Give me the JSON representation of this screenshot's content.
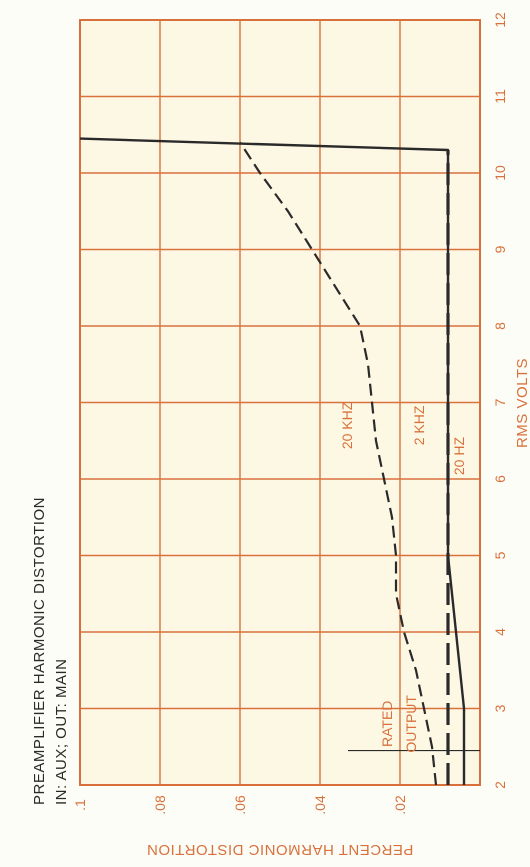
{
  "chart_data": {
    "type": "line",
    "title": "PREAMPLIFIER HARMONIC DISTORTION",
    "subtitle": "IN: AUX; OUT: MAIN",
    "xlabel": "RMS VOLTS",
    "ylabel": "PERCENT HARMONIC DISTORTION",
    "xlim": [
      2,
      12
    ],
    "ylim": [
      0,
      0.1
    ],
    "x_ticks": [
      "2",
      "3",
      "4",
      "5",
      "6",
      "7",
      "8",
      "9",
      "10",
      "11",
      "12"
    ],
    "y_ticks": [
      ".02",
      ".04",
      ".06",
      ".08",
      ".1"
    ],
    "grid": true,
    "series": [
      {
        "name": "20 KHZ",
        "style": "short-dash",
        "x": [
          2,
          2.5,
          3,
          3.5,
          4,
          4.5,
          5,
          5.5,
          6,
          6.5,
          7,
          7.5,
          8,
          8.5,
          9,
          9.5,
          10,
          10.4
        ],
        "y": [
          0.011,
          0.012,
          0.014,
          0.016,
          0.019,
          0.021,
          0.021,
          0.022,
          0.024,
          0.026,
          0.027,
          0.028,
          0.03,
          0.036,
          0.042,
          0.048,
          0.055,
          0.06
        ]
      },
      {
        "name": "2 KHZ",
        "style": "long-dash",
        "x": [
          2,
          2.5,
          3,
          4,
          5,
          6,
          7,
          8,
          9,
          10,
          10.3
        ],
        "y": [
          0.008,
          0.008,
          0.008,
          0.008,
          0.008,
          0.008,
          0.008,
          0.008,
          0.008,
          0.008,
          0.008
        ]
      },
      {
        "name": "20 HZ",
        "style": "solid",
        "x": [
          2,
          2.5,
          3,
          3.5,
          4,
          4.5,
          5,
          5.5,
          6,
          7,
          8,
          9,
          10,
          10.3,
          10.45
        ],
        "y": [
          0.004,
          0.004,
          0.004,
          0.005,
          0.006,
          0.007,
          0.008,
          0.008,
          0.008,
          0.008,
          0.008,
          0.008,
          0.008,
          0.008,
          0.1
        ]
      }
    ],
    "annotations": [
      {
        "text_line1": "RATED",
        "text_line2": "OUTPUT",
        "x": 2.45
      }
    ]
  },
  "colors": {
    "grid": "#d8713c",
    "curve": "#2a2a2a",
    "paper": "#fdfdf7",
    "plot_bg": "#fdf8e4"
  }
}
